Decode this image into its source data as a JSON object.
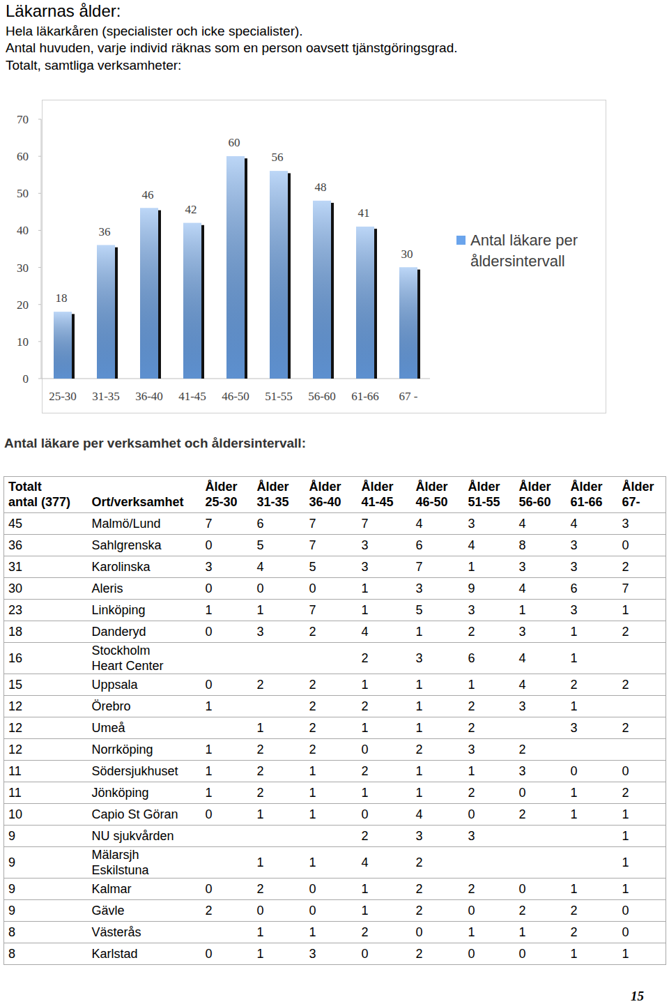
{
  "header": {
    "title": "Läkarnas ålder:",
    "lines": [
      "Hela läkarkåren (specialister och icke specialister).",
      "Antal huvuden, varje individ räknas som en person oavsett tjänstgöringsgrad.",
      "Totalt, samtliga verksamheter:"
    ]
  },
  "chart_data": {
    "type": "bar",
    "categories": [
      "25-30",
      "31-35",
      "36-40",
      "41-45",
      "46-50",
      "51-55",
      "56-60",
      "61-66",
      "67 -"
    ],
    "series": [
      {
        "name": "Antal läkare per åldersintervall",
        "color": "#6aa4ec",
        "values": [
          18,
          36,
          46,
          42,
          60,
          56,
          48,
          41,
          30
        ]
      }
    ],
    "ylim": [
      0,
      70
    ],
    "yticks": [
      0,
      10,
      20,
      30,
      40,
      50,
      60,
      70
    ],
    "data_labels": true,
    "legend": "right",
    "grid": false
  },
  "table": {
    "title": "Antal läkare per verksamhet och åldersintervall:",
    "columns": [
      "Totalt\nantal (377)",
      "Ort/verksamhet",
      "Ålder\n25-30",
      "Ålder\n31-35",
      "Ålder\n36-40",
      "Ålder\n41-45",
      "Ålder\n46-50",
      "Ålder\n51-55",
      "Ålder\n56-60",
      "Ålder\n61-66",
      "Ålder\n67-"
    ],
    "rows": [
      [
        45,
        "Malmö/Lund",
        7,
        6,
        7,
        7,
        4,
        3,
        4,
        4,
        3
      ],
      [
        36,
        "Sahlgrenska",
        0,
        5,
        7,
        3,
        6,
        4,
        8,
        3,
        0
      ],
      [
        31,
        "Karolinska",
        3,
        4,
        5,
        3,
        7,
        1,
        3,
        3,
        2
      ],
      [
        30,
        "Aleris",
        0,
        0,
        0,
        1,
        3,
        9,
        4,
        6,
        7
      ],
      [
        23,
        "Linköping",
        1,
        1,
        7,
        1,
        5,
        3,
        1,
        3,
        1
      ],
      [
        18,
        "Danderyd",
        0,
        3,
        2,
        4,
        1,
        2,
        3,
        1,
        2
      ],
      [
        16,
        "Stockholm\nHeart Center",
        null,
        null,
        null,
        2,
        3,
        6,
        4,
        1,
        null
      ],
      [
        15,
        "Uppsala",
        0,
        2,
        2,
        1,
        1,
        1,
        4,
        2,
        2
      ],
      [
        12,
        "Örebro",
        1,
        null,
        2,
        2,
        1,
        2,
        3,
        1,
        null
      ],
      [
        12,
        "Umeå",
        null,
        1,
        2,
        1,
        1,
        2,
        null,
        3,
        2
      ],
      [
        12,
        "Norrköping",
        1,
        2,
        2,
        0,
        2,
        3,
        2,
        null,
        null
      ],
      [
        11,
        "Södersjukhuset",
        1,
        2,
        1,
        2,
        1,
        1,
        3,
        0,
        0
      ],
      [
        11,
        "Jönköping",
        1,
        2,
        1,
        1,
        1,
        2,
        0,
        1,
        2
      ],
      [
        10,
        "Capio St Göran",
        0,
        1,
        1,
        0,
        4,
        0,
        2,
        1,
        1
      ],
      [
        9,
        "NU sjukvården",
        null,
        null,
        null,
        2,
        3,
        3,
        null,
        null,
        1
      ],
      [
        9,
        "Mälarsjh\nEskilstuna",
        null,
        1,
        1,
        4,
        2,
        null,
        null,
        null,
        1
      ],
      [
        9,
        "Kalmar",
        0,
        2,
        0,
        1,
        2,
        2,
        0,
        1,
        1
      ],
      [
        9,
        "Gävle",
        2,
        0,
        0,
        1,
        2,
        0,
        2,
        2,
        0
      ],
      [
        8,
        "Västerås",
        null,
        1,
        1,
        2,
        0,
        1,
        1,
        2,
        0
      ],
      [
        8,
        "Karlstad",
        0,
        1,
        3,
        0,
        2,
        0,
        0,
        1,
        1
      ]
    ]
  },
  "page_number": "15"
}
